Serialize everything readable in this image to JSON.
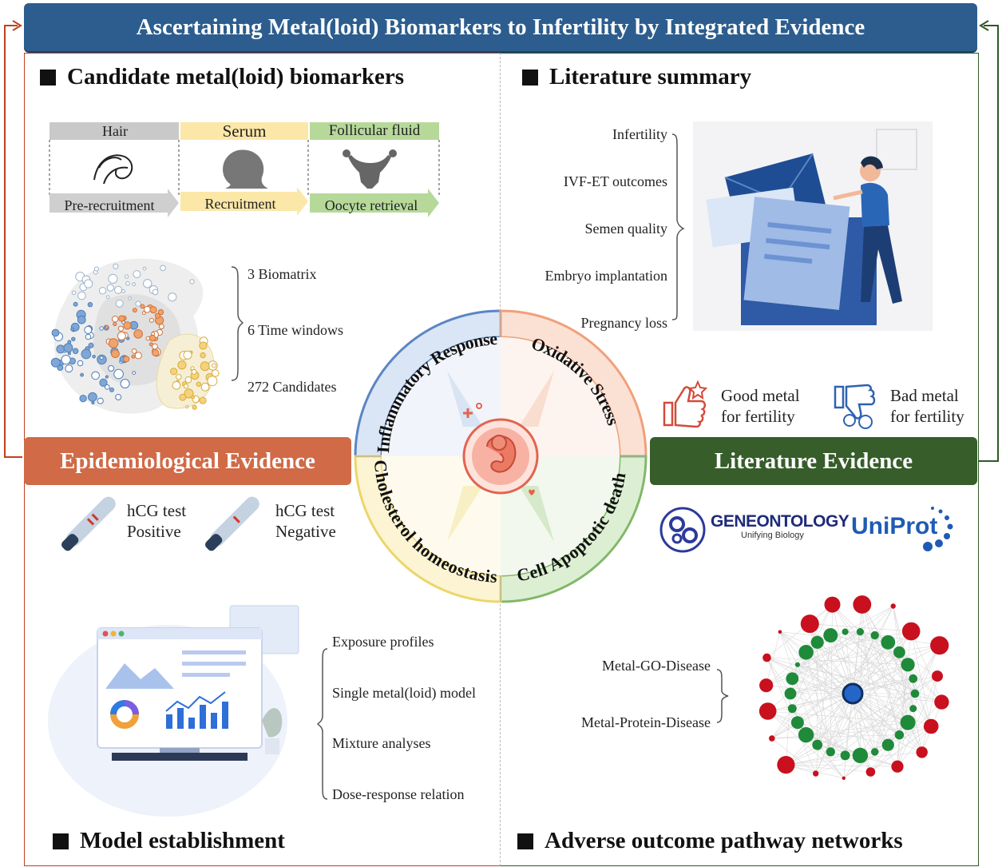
{
  "title": "Ascertaining Metal(loid) Biomarkers to Infertility by Integrated Evidence",
  "sections": {
    "candidates": "Candidate metal(loid) biomarkers",
    "literature_summary": "Literature summary",
    "model": "Model establishment",
    "aop": "Adverse outcome pathway networks"
  },
  "evidence": {
    "epi": "Epidemiological Evidence",
    "lit": "Literature Evidence"
  },
  "timeline": {
    "matrices": [
      "Hair",
      "Serum",
      "Follicular fluid"
    ],
    "windows": [
      "Pre-recruitment",
      "Recruitment",
      "Oocyte retrieval"
    ]
  },
  "candidate_stats": [
    "3 Biomatrix",
    "6 Time windows",
    "272 Candidates"
  ],
  "lit_topics": [
    "Infertility",
    "IVF-ET outcomes",
    "Semen quality",
    "Embryo implantation",
    "Pregnancy loss"
  ],
  "metal_labels": {
    "good": [
      "Good metal",
      "for fertility"
    ],
    "bad": [
      "Bad metal",
      "for fertility"
    ]
  },
  "hcg": {
    "pos": [
      "hCG test",
      "Positive"
    ],
    "neg": [
      "hCG test",
      "Negative"
    ]
  },
  "analyses": [
    "Exposure profiles",
    "Single metal(loid) model",
    "Mixture analyses",
    "Dose-response relation"
  ],
  "databases": {
    "go": "GENEONTOLOGY",
    "go_tag": "Unifying Biology",
    "uniprot": "UniProt"
  },
  "network_labels": [
    "Metal-GO-Disease",
    "Metal-Protein-Disease"
  ],
  "pathways": [
    "Inflammatory Response",
    "Oxidative Stress",
    "Cell Apoptotic death",
    "Cholesterol homeostasis"
  ],
  "colors": {
    "banner": "#2c5d8e",
    "epi": "#d06a47",
    "lit": "#365d2a",
    "arrow_left": "#c0411f",
    "arrow_right": "#2f5a26",
    "q1": "#5b85c4",
    "q2": "#f0a07a",
    "q3": "#82b86a",
    "q4": "#ebd66a"
  }
}
